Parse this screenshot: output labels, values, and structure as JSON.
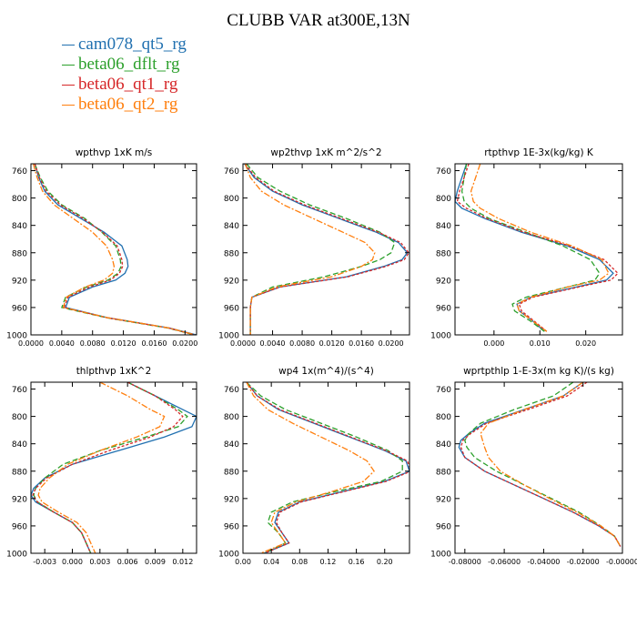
{
  "title": "CLUBB VAR at300E,13N",
  "series_styles": [
    {
      "name": "cam078_qt5_rg",
      "color": "#2070b0",
      "dash": "none"
    },
    {
      "name": "beta06_dflt_rg",
      "color": "#2ca02c",
      "dash": "6,3"
    },
    {
      "name": "beta06_qt1_rg",
      "color": "#d62728",
      "dash": "3,2"
    },
    {
      "name": "beta06_qt2_rg",
      "color": "#ff7f0e",
      "dash": "7,2,2,2"
    }
  ],
  "chart_data": [
    {
      "type": "line",
      "title": "wpthvp   1xK m/s",
      "xlabel": "",
      "ylabel": "",
      "xlim": [
        0.0,
        0.0215
      ],
      "ylim": [
        1000,
        750
      ],
      "xticks": [
        0.0,
        0.004,
        0.008,
        0.012,
        0.016,
        0.02
      ],
      "xtick_labels": [
        "0.0000",
        "0.0040",
        "0.0080",
        "0.0120",
        "0.0160",
        "0.0200"
      ],
      "yticks": [
        760,
        800,
        840,
        880,
        920,
        960,
        1000
      ],
      "ytick_labels": [
        "760",
        "800",
        "840",
        "880",
        "920",
        "960",
        "1000"
      ],
      "y": [
        750,
        770,
        790,
        810,
        830,
        850,
        870,
        890,
        900,
        910,
        920,
        930,
        945,
        960,
        975,
        990,
        1000
      ],
      "series": [
        {
          "name": "cam078_qt5_rg",
          "values": [
            0.0005,
            0.001,
            0.0018,
            0.0035,
            0.0065,
            0.0095,
            0.0118,
            0.0125,
            0.0126,
            0.0122,
            0.011,
            0.008,
            0.005,
            0.0045,
            0.01,
            0.018,
            0.0215
          ]
        },
        {
          "name": "beta06_dflt_rg",
          "values": [
            0.0005,
            0.0012,
            0.0022,
            0.004,
            0.007,
            0.0092,
            0.011,
            0.0116,
            0.0117,
            0.0113,
            0.01,
            0.0072,
            0.0045,
            0.004,
            0.0098,
            0.0178,
            0.0212
          ]
        },
        {
          "name": "beta06_qt1_rg",
          "values": [
            0.0005,
            0.0011,
            0.002,
            0.0038,
            0.0068,
            0.0093,
            0.0112,
            0.0118,
            0.0119,
            0.0115,
            0.0103,
            0.0076,
            0.0048,
            0.0043,
            0.0099,
            0.0179,
            0.0213
          ]
        },
        {
          "name": "beta06_qt2_rg",
          "values": [
            0.0003,
            0.0008,
            0.0015,
            0.003,
            0.0055,
            0.008,
            0.0098,
            0.0106,
            0.0108,
            0.0106,
            0.0095,
            0.007,
            0.0046,
            0.0042,
            0.01,
            0.018,
            0.0213
          ]
        }
      ]
    },
    {
      "type": "line",
      "title": "wp2thvp   1xK m^2/s^2",
      "xlabel": "",
      "ylabel": "",
      "xlim": [
        0.0,
        0.0225
      ],
      "ylim": [
        1000,
        750
      ],
      "xticks": [
        0.0,
        0.004,
        0.008,
        0.012,
        0.016,
        0.02
      ],
      "xtick_labels": [
        "0.0000",
        "0.0040",
        "0.0080",
        "0.0120",
        "0.0160",
        "0.0200"
      ],
      "yticks": [
        760,
        800,
        840,
        880,
        920,
        960,
        1000
      ],
      "ytick_labels": [
        "760",
        "800",
        "840",
        "880",
        "920",
        "960",
        "1000"
      ],
      "y": [
        750,
        770,
        790,
        810,
        830,
        850,
        865,
        880,
        890,
        900,
        915,
        930,
        945,
        960,
        980,
        1000
      ],
      "series": [
        {
          "name": "cam078_qt5_rg",
          "values": [
            0.0002,
            0.0015,
            0.004,
            0.008,
            0.013,
            0.018,
            0.021,
            0.0222,
            0.0215,
            0.019,
            0.014,
            0.005,
            0.0012,
            0.001,
            0.001,
            0.001
          ]
        },
        {
          "name": "beta06_dflt_rg",
          "values": [
            0.0005,
            0.002,
            0.005,
            0.009,
            0.014,
            0.0185,
            0.0205,
            0.02,
            0.0185,
            0.016,
            0.011,
            0.004,
            0.0012,
            0.001,
            0.001,
            0.001
          ]
        },
        {
          "name": "beta06_qt1_rg",
          "values": [
            0.0003,
            0.0017,
            0.0042,
            0.0083,
            0.0133,
            0.0183,
            0.0213,
            0.0224,
            0.0218,
            0.0193,
            0.0142,
            0.005,
            0.0012,
            0.001,
            0.001,
            0.001
          ]
        },
        {
          "name": "beta06_qt2_rg",
          "values": [
            0.0003,
            0.001,
            0.0025,
            0.0055,
            0.0095,
            0.0135,
            0.0165,
            0.0178,
            0.0175,
            0.016,
            0.012,
            0.0045,
            0.0012,
            0.001,
            0.001,
            0.001
          ]
        }
      ]
    },
    {
      "type": "line",
      "title": "rtpthvp   1E-3x(kg/kg) K",
      "xlabel": "",
      "ylabel": "",
      "xlim": [
        -0.0085,
        0.028
      ],
      "ylim": [
        1000,
        750
      ],
      "xticks": [
        0.0,
        0.01,
        0.02
      ],
      "xtick_labels": [
        "0.000",
        "0.010",
        "0.020"
      ],
      "yticks": [
        760,
        800,
        840,
        880,
        920,
        960,
        1000
      ],
      "ytick_labels": [
        "760",
        "800",
        "840",
        "880",
        "920",
        "960",
        "1000"
      ],
      "y": [
        750,
        770,
        790,
        805,
        815,
        830,
        850,
        870,
        890,
        910,
        920,
        930,
        945,
        955,
        965,
        980,
        995
      ],
      "series": [
        {
          "name": "cam078_qt5_rg",
          "values": [
            -0.006,
            -0.007,
            -0.008,
            -0.0085,
            -0.007,
            -0.002,
            0.006,
            0.016,
            0.023,
            0.026,
            0.0245,
            0.018,
            0.008,
            0.005,
            0.0055,
            0.0085,
            0.011
          ]
        },
        {
          "name": "beta06_dflt_rg",
          "values": [
            -0.006,
            -0.0065,
            -0.007,
            -0.0065,
            -0.005,
            -0.001,
            0.007,
            0.015,
            0.021,
            0.023,
            0.022,
            0.016,
            0.007,
            0.004,
            0.0045,
            0.008,
            0.011
          ]
        },
        {
          "name": "beta06_qt1_rg",
          "values": [
            -0.0055,
            -0.0065,
            -0.0075,
            -0.008,
            -0.006,
            -0.0015,
            0.0065,
            0.0165,
            0.024,
            0.027,
            0.0255,
            0.0185,
            0.0085,
            0.0055,
            0.006,
            0.0088,
            0.0115
          ]
        },
        {
          "name": "beta06_qt2_rg",
          "values": [
            -0.003,
            -0.004,
            -0.005,
            -0.0045,
            -0.003,
            0.001,
            0.008,
            0.017,
            0.0235,
            0.025,
            0.023,
            0.016,
            0.008,
            0.005,
            0.0055,
            0.0085,
            0.0115
          ]
        }
      ]
    },
    {
      "type": "line",
      "title": "thlpthvp   1xK^2",
      "xlabel": "",
      "ylabel": "",
      "xlim": [
        -0.0045,
        0.0135
      ],
      "ylim": [
        1000,
        750
      ],
      "xticks": [
        -0.003,
        0.0,
        0.003,
        0.006,
        0.009,
        0.012
      ],
      "xtick_labels": [
        "-0.003",
        "0.000",
        "0.003",
        "0.006",
        "0.009",
        "0.012"
      ],
      "yticks": [
        760,
        800,
        840,
        880,
        920,
        960,
        1000
      ],
      "ytick_labels": [
        "760",
        "800",
        "840",
        "880",
        "920",
        "960",
        "1000"
      ],
      "y": [
        750,
        770,
        790,
        800,
        815,
        830,
        850,
        870,
        890,
        905,
        915,
        925,
        940,
        955,
        970,
        985,
        1000
      ],
      "series": [
        {
          "name": "cam078_qt5_rg",
          "values": [
            0.006,
            0.009,
            0.012,
            0.0135,
            0.013,
            0.01,
            0.005,
            0.0,
            -0.003,
            -0.0042,
            -0.0045,
            -0.004,
            -0.002,
            0.0,
            0.001,
            0.0015,
            0.002
          ]
        },
        {
          "name": "beta06_dflt_rg",
          "values": [
            0.006,
            0.009,
            0.0115,
            0.0125,
            0.0115,
            0.008,
            0.003,
            -0.001,
            -0.003,
            -0.004,
            -0.0042,
            -0.0038,
            -0.002,
            0.0,
            0.001,
            0.0015,
            0.002
          ]
        },
        {
          "name": "beta06_qt1_rg",
          "values": [
            0.006,
            0.009,
            0.0112,
            0.012,
            0.011,
            0.0085,
            0.004,
            0.0,
            -0.0028,
            -0.004,
            -0.0043,
            -0.0038,
            -0.002,
            0.0,
            0.001,
            0.0015,
            0.002
          ]
        },
        {
          "name": "beta06_qt2_rg",
          "values": [
            0.003,
            0.006,
            0.0085,
            0.01,
            0.0095,
            0.007,
            0.003,
            -0.0005,
            -0.0025,
            -0.0035,
            -0.0037,
            -0.0033,
            -0.0015,
            0.0005,
            0.0015,
            0.002,
            0.0025
          ]
        }
      ]
    },
    {
      "type": "line",
      "title": "wp4   1x(m^4)/(s^4)",
      "xlabel": "",
      "ylabel": "",
      "xlim": [
        0.0,
        0.235
      ],
      "ylim": [
        1000,
        750
      ],
      "xticks": [
        0.0,
        0.04,
        0.08,
        0.12,
        0.16,
        0.2
      ],
      "xtick_labels": [
        "0.00",
        "0.04",
        "0.08",
        "0.12",
        "0.16",
        "0.20"
      ],
      "yticks": [
        760,
        800,
        840,
        880,
        920,
        960,
        1000
      ],
      "ytick_labels": [
        "760",
        "800",
        "840",
        "880",
        "920",
        "960",
        "1000"
      ],
      "y": [
        750,
        770,
        790,
        810,
        830,
        850,
        865,
        880,
        895,
        910,
        925,
        940,
        955,
        970,
        985,
        1000
      ],
      "series": [
        {
          "name": "cam078_qt5_rg",
          "values": [
            0.005,
            0.02,
            0.05,
            0.1,
            0.15,
            0.2,
            0.23,
            0.235,
            0.2,
            0.14,
            0.08,
            0.05,
            0.045,
            0.055,
            0.065,
            0.03
          ]
        },
        {
          "name": "beta06_dflt_rg",
          "values": [
            0.005,
            0.025,
            0.06,
            0.11,
            0.16,
            0.205,
            0.225,
            0.225,
            0.195,
            0.13,
            0.07,
            0.04,
            0.035,
            0.05,
            0.06,
            0.03
          ]
        },
        {
          "name": "beta06_qt1_rg",
          "values": [
            0.005,
            0.02,
            0.052,
            0.102,
            0.152,
            0.202,
            0.232,
            0.237,
            0.202,
            0.142,
            0.082,
            0.052,
            0.047,
            0.055,
            0.065,
            0.03
          ]
        },
        {
          "name": "beta06_qt2_rg",
          "values": [
            0.005,
            0.015,
            0.035,
            0.07,
            0.11,
            0.15,
            0.175,
            0.185,
            0.17,
            0.125,
            0.075,
            0.045,
            0.04,
            0.05,
            0.06,
            0.025
          ]
        }
      ]
    },
    {
      "type": "line",
      "title": "wprtpthlp   1-E-3x(m kg K)/(s kg)",
      "xlabel": "",
      "ylabel": "",
      "xlim": [
        -0.085,
        0.0
      ],
      "ylim": [
        1000,
        750
      ],
      "xticks": [
        -0.08,
        -0.06,
        -0.04,
        -0.02,
        0.0
      ],
      "xtick_labels": [
        "-0.08000",
        "-0.06000",
        "-0.04000",
        "-0.02000",
        "-0.00000"
      ],
      "yticks": [
        760,
        800,
        840,
        880,
        920,
        960,
        1000
      ],
      "ytick_labels": [
        "760",
        "800",
        "840",
        "880",
        "920",
        "960",
        "1000"
      ],
      "y": [
        750,
        770,
        790,
        810,
        825,
        835,
        845,
        860,
        880,
        900,
        920,
        940,
        960,
        975,
        990
      ],
      "series": [
        {
          "name": "cam078_qt5_rg",
          "values": [
            -0.02,
            -0.03,
            -0.05,
            -0.07,
            -0.078,
            -0.082,
            -0.083,
            -0.08,
            -0.07,
            -0.055,
            -0.04,
            -0.025,
            -0.012,
            -0.004,
            -0.001
          ]
        },
        {
          "name": "beta06_dflt_rg",
          "values": [
            -0.025,
            -0.035,
            -0.055,
            -0.072,
            -0.078,
            -0.08,
            -0.079,
            -0.075,
            -0.064,
            -0.05,
            -0.036,
            -0.022,
            -0.011,
            -0.004,
            -0.001
          ]
        },
        {
          "name": "beta06_qt1_rg",
          "values": [
            -0.018,
            -0.028,
            -0.048,
            -0.069,
            -0.077,
            -0.081,
            -0.082,
            -0.08,
            -0.07,
            -0.055,
            -0.04,
            -0.025,
            -0.012,
            -0.004,
            -0.001
          ]
        },
        {
          "name": "beta06_qt2_rg",
          "values": [
            -0.02,
            -0.03,
            -0.05,
            -0.068,
            -0.072,
            -0.071,
            -0.07,
            -0.068,
            -0.062,
            -0.05,
            -0.037,
            -0.023,
            -0.011,
            -0.004,
            -0.001
          ]
        }
      ]
    }
  ]
}
